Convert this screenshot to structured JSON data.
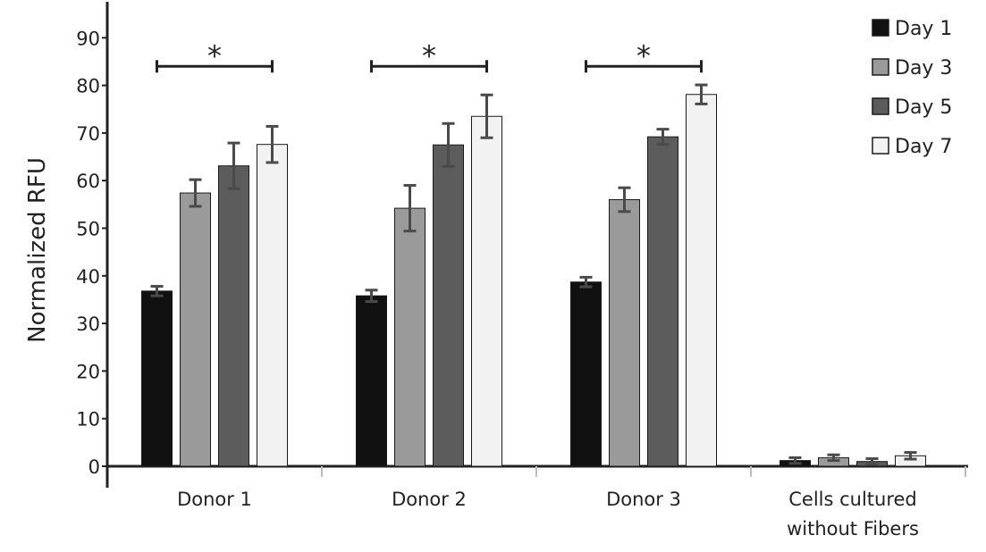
{
  "chart_data": {
    "type": "bar",
    "title": "",
    "xlabel": "",
    "ylabel": "Normalized RFU",
    "ylim": [
      0,
      97
    ],
    "yticks": [
      0,
      10,
      20,
      30,
      40,
      50,
      60,
      70,
      80,
      90
    ],
    "categories": [
      [
        "Donor 1"
      ],
      [
        "Donor 2"
      ],
      [
        "Donor 3"
      ],
      [
        "Cells cultured",
        "without Fibers"
      ]
    ],
    "series": [
      {
        "name": "Day 1",
        "color": "#111111",
        "values": [
          36.8,
          35.8,
          38.7,
          1.2
        ],
        "errors": [
          1.0,
          1.2,
          1.0,
          0.6
        ]
      },
      {
        "name": "Day 3",
        "color": "#9a9a9a",
        "values": [
          57.4,
          54.2,
          56.0,
          1.8
        ],
        "errors": [
          2.8,
          4.8,
          2.5,
          0.6
        ]
      },
      {
        "name": "Day 5",
        "color": "#5c5c5c",
        "values": [
          63.1,
          67.5,
          69.2,
          1.0
        ],
        "errors": [
          4.8,
          4.5,
          1.6,
          0.6
        ]
      },
      {
        "name": "Day 7",
        "color": "#f2f2f2",
        "values": [
          67.6,
          73.5,
          78.1,
          2.2
        ],
        "errors": [
          3.8,
          4.5,
          2.0,
          0.7
        ]
      }
    ],
    "significance": [
      {
        "group": 0,
        "from_series": 0,
        "to_series": 3,
        "y": 84,
        "label": "*"
      },
      {
        "group": 1,
        "from_series": 0,
        "to_series": 3,
        "y": 84,
        "label": "*"
      },
      {
        "group": 2,
        "from_series": 0,
        "to_series": 3,
        "y": 84,
        "label": "*"
      }
    ],
    "grid": false,
    "legend_position": "top-right"
  }
}
